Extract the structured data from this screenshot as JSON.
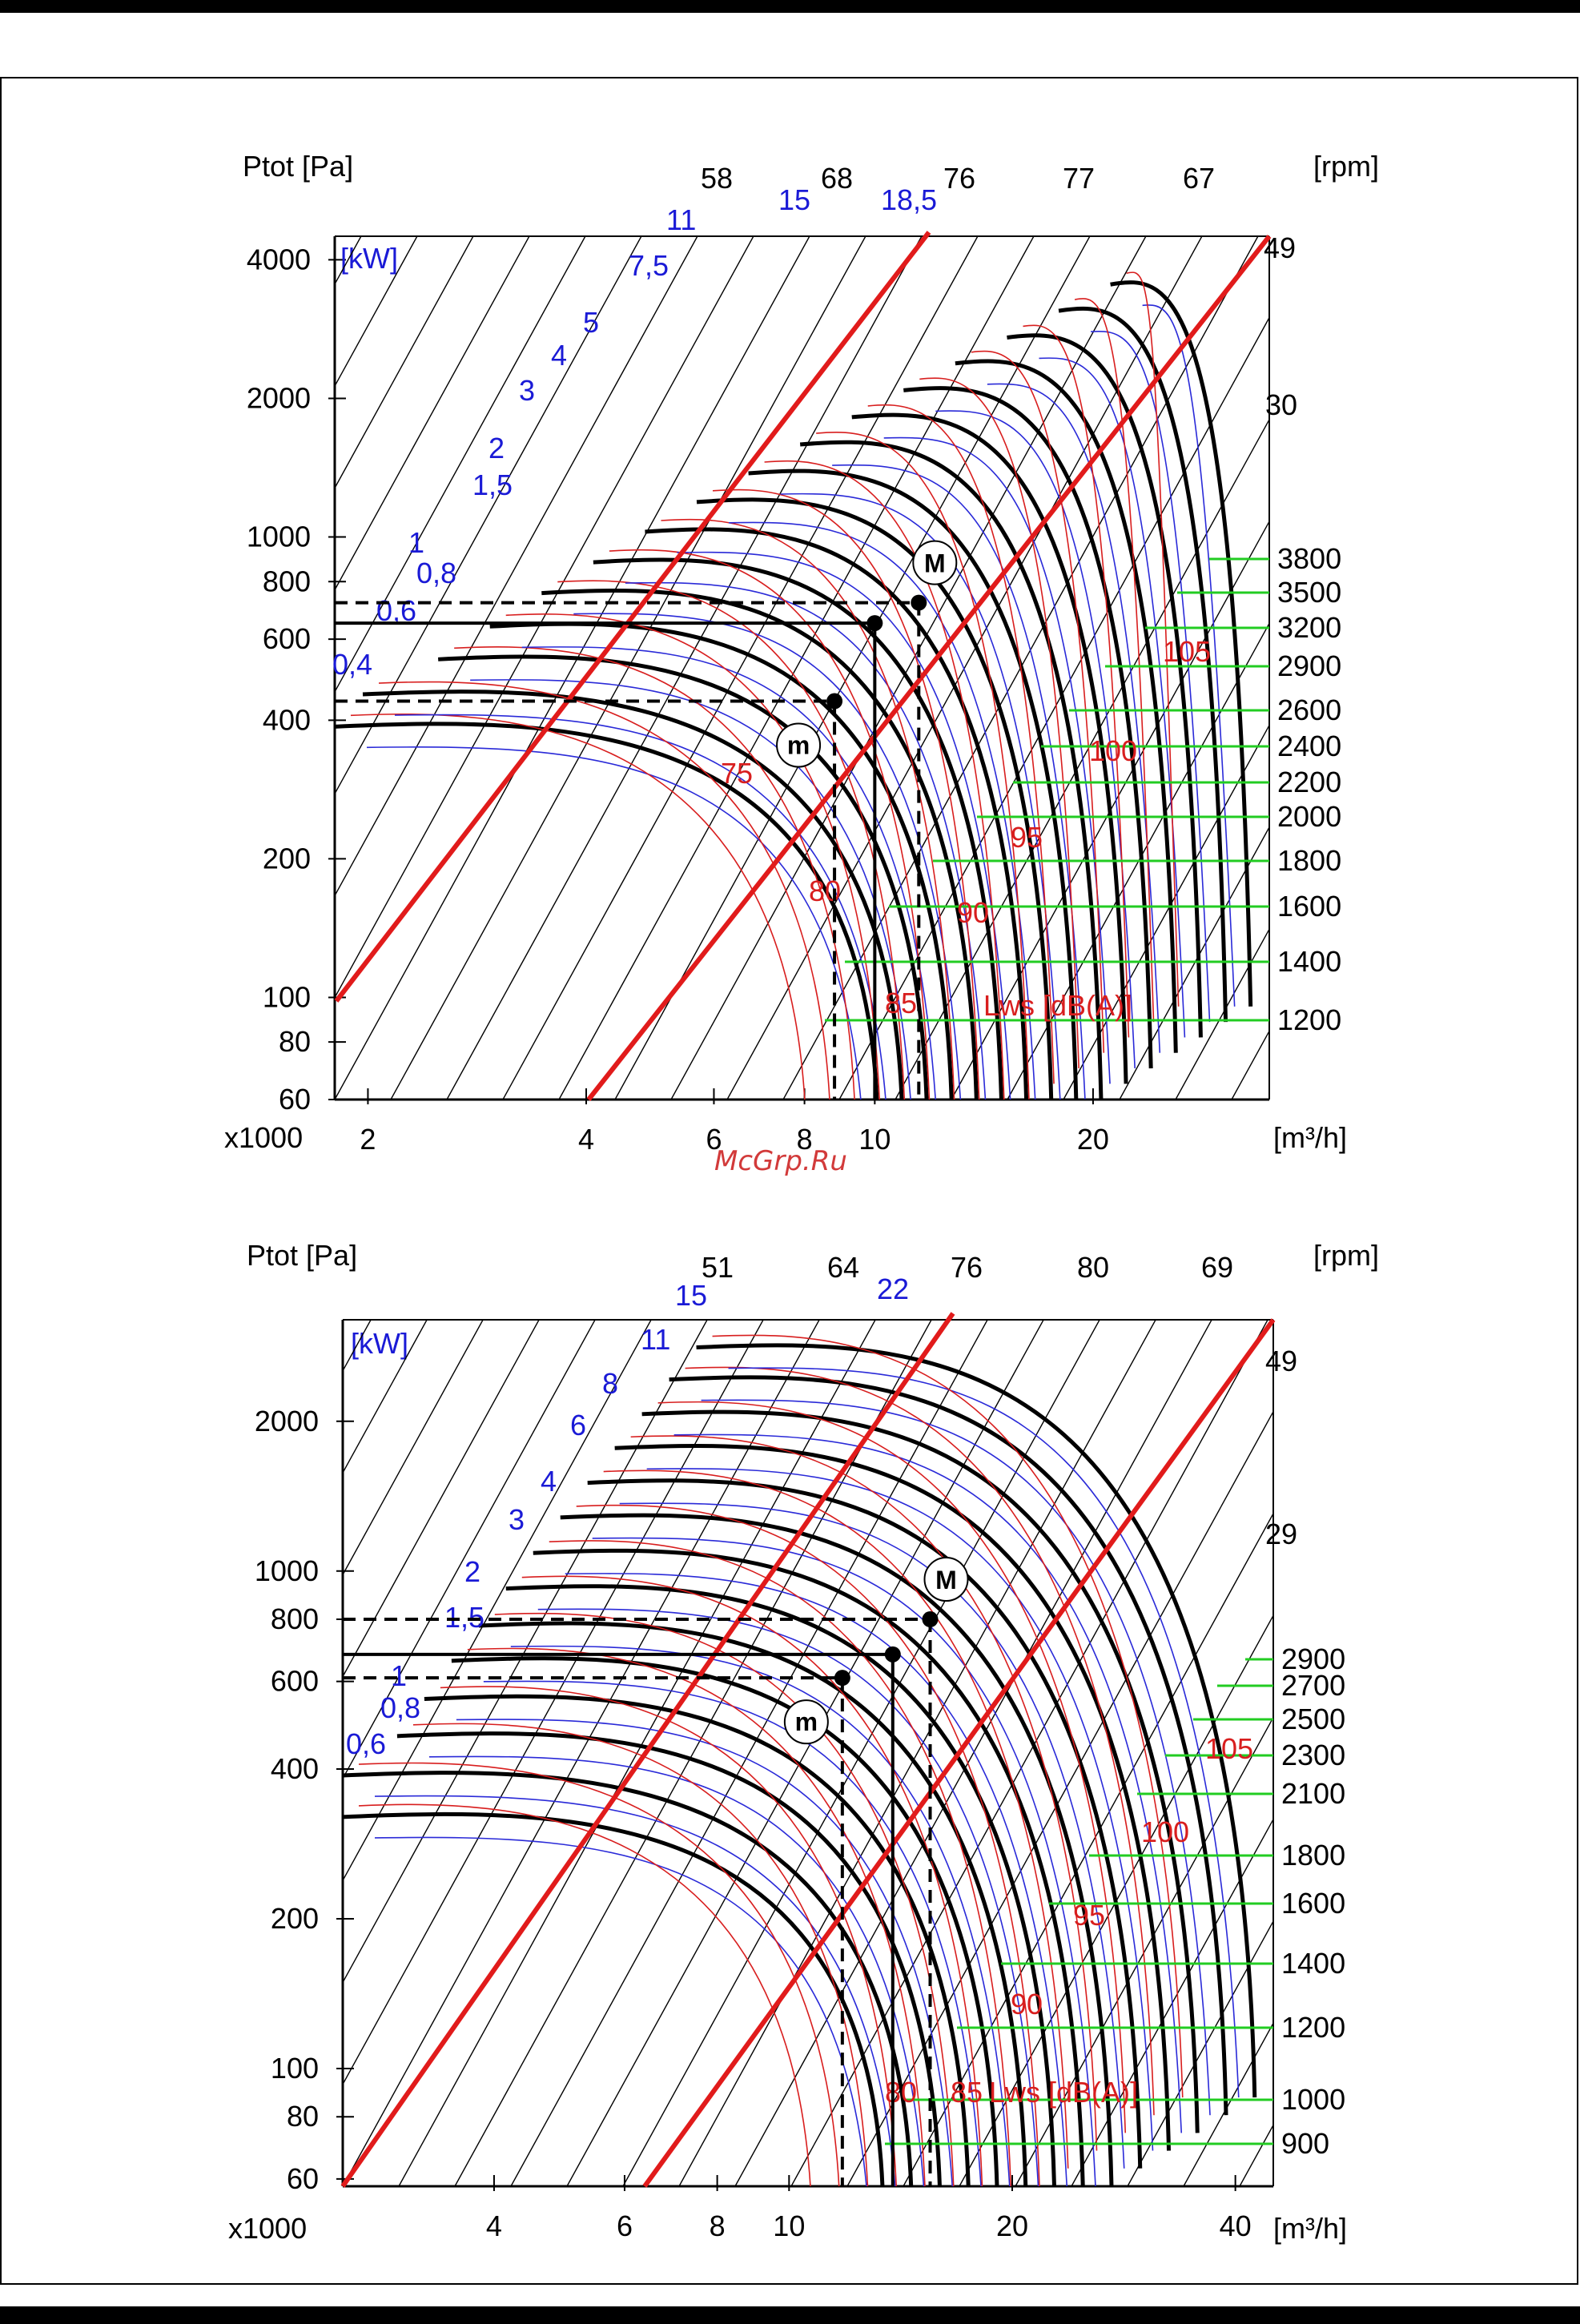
{
  "page": {
    "watermark": "McGrp.Ru"
  },
  "chart_data": [
    {
      "type": "line",
      "title": "",
      "xlabel": "[m³/h]",
      "x_multiplier": "x1000",
      "ylabel": "Ptot [Pa]",
      "rpm_label": "[rpm]",
      "power_unit": "[kW]",
      "sound_label": "Lws [dB(A)]",
      "xlim": [
        1.8,
        35
      ],
      "ylim": [
        60,
        4500
      ],
      "x_ticks": [
        {
          "v": 2,
          "label": "2"
        },
        {
          "v": 4,
          "label": "4"
        },
        {
          "v": 6,
          "label": "6"
        },
        {
          "v": 8,
          "label": "8"
        },
        {
          "v": 10,
          "label": "10"
        },
        {
          "v": 20,
          "label": "20"
        }
      ],
      "y_ticks": [
        {
          "v": 60,
          "label": "60"
        },
        {
          "v": 80,
          "label": "80"
        },
        {
          "v": 100,
          "label": "100"
        },
        {
          "v": 200,
          "label": "200"
        },
        {
          "v": 400,
          "label": "400"
        },
        {
          "v": 600,
          "label": "600"
        },
        {
          "v": 800,
          "label": "800"
        },
        {
          "v": 1000,
          "label": "1000"
        },
        {
          "v": 2000,
          "label": "2000"
        },
        {
          "v": 4000,
          "label": "4000"
        }
      ],
      "rpm_scale": [
        "1200",
        "1400",
        "1600",
        "1800",
        "2000",
        "2200",
        "2400",
        "2600",
        "2900",
        "3200",
        "3500",
        "3800"
      ],
      "fan_curves_dp0": [
        400,
        470,
        560,
        660,
        780,
        910,
        1060,
        1230,
        1420,
        1640,
        1880,
        2150,
        2460,
        2800,
        3200,
        3650
      ],
      "efficiency_labels": [
        "58",
        "68",
        "76",
        "77",
        "67",
        "49",
        "30"
      ],
      "power_labels": [
        "0,4",
        "0,6",
        "0,8",
        "1",
        "1,5",
        "2",
        "3",
        "4",
        "5",
        "7,5",
        "11",
        "15",
        "18,5"
      ],
      "sound_labels": [
        "75",
        "80",
        "85",
        "90",
        "95",
        "100",
        "105"
      ],
      "points": [
        {
          "name": "m",
          "x": 8.8,
          "y": 440
        },
        {
          "name": "nominal",
          "x": 10.0,
          "y": 650
        },
        {
          "name": "M",
          "x": 11.5,
          "y": 720
        }
      ],
      "marker_labels": {
        "m": "m",
        "M": "M"
      }
    },
    {
      "type": "line",
      "title": "",
      "xlabel": "[m³/h]",
      "x_multiplier": "x1000",
      "ylabel": "Ptot [Pa]",
      "rpm_label": "[rpm]",
      "power_unit": "[kW]",
      "sound_label": "Lws [dB(A)]",
      "xlim": [
        2.5,
        45
      ],
      "ylim": [
        58,
        3200
      ],
      "x_ticks": [
        {
          "v": 4,
          "label": "4"
        },
        {
          "v": 6,
          "label": "6"
        },
        {
          "v": 8,
          "label": "8"
        },
        {
          "v": 10,
          "label": "10"
        },
        {
          "v": 20,
          "label": "20"
        },
        {
          "v": 40,
          "label": "40"
        }
      ],
      "y_ticks": [
        {
          "v": 60,
          "label": "60"
        },
        {
          "v": 80,
          "label": "80"
        },
        {
          "v": 100,
          "label": "100"
        },
        {
          "v": 200,
          "label": "200"
        },
        {
          "v": 400,
          "label": "400"
        },
        {
          "v": 600,
          "label": "600"
        },
        {
          "v": 800,
          "label": "800"
        },
        {
          "v": 1000,
          "label": "1000"
        },
        {
          "v": 2000,
          "label": "2000"
        }
      ],
      "rpm_scale": [
        "900",
        "1000",
        "1200",
        "1400",
        "1600",
        "1800",
        "2100",
        "2300",
        "2500",
        "2700",
        "2900"
      ],
      "fan_curves_dp0": [
        330,
        400,
        480,
        570,
        680,
        800,
        950,
        1120,
        1320,
        1550,
        1820,
        2130,
        2500,
        2900
      ],
      "efficiency_labels": [
        "51",
        "64",
        "76",
        "80",
        "69",
        "49",
        "29"
      ],
      "power_labels": [
        "0,6",
        "0,8",
        "1",
        "1,5",
        "2",
        "3",
        "4",
        "6",
        "8",
        "11",
        "15",
        "22"
      ],
      "sound_labels": [
        "80",
        "85",
        "90",
        "95",
        "100",
        "105"
      ],
      "points": [
        {
          "name": "m",
          "x": 11.8,
          "y": 610
        },
        {
          "name": "nominal",
          "x": 13.8,
          "y": 680
        },
        {
          "name": "M",
          "x": 15.5,
          "y": 800
        }
      ],
      "marker_labels": {
        "m": "m",
        "M": "M"
      }
    }
  ]
}
